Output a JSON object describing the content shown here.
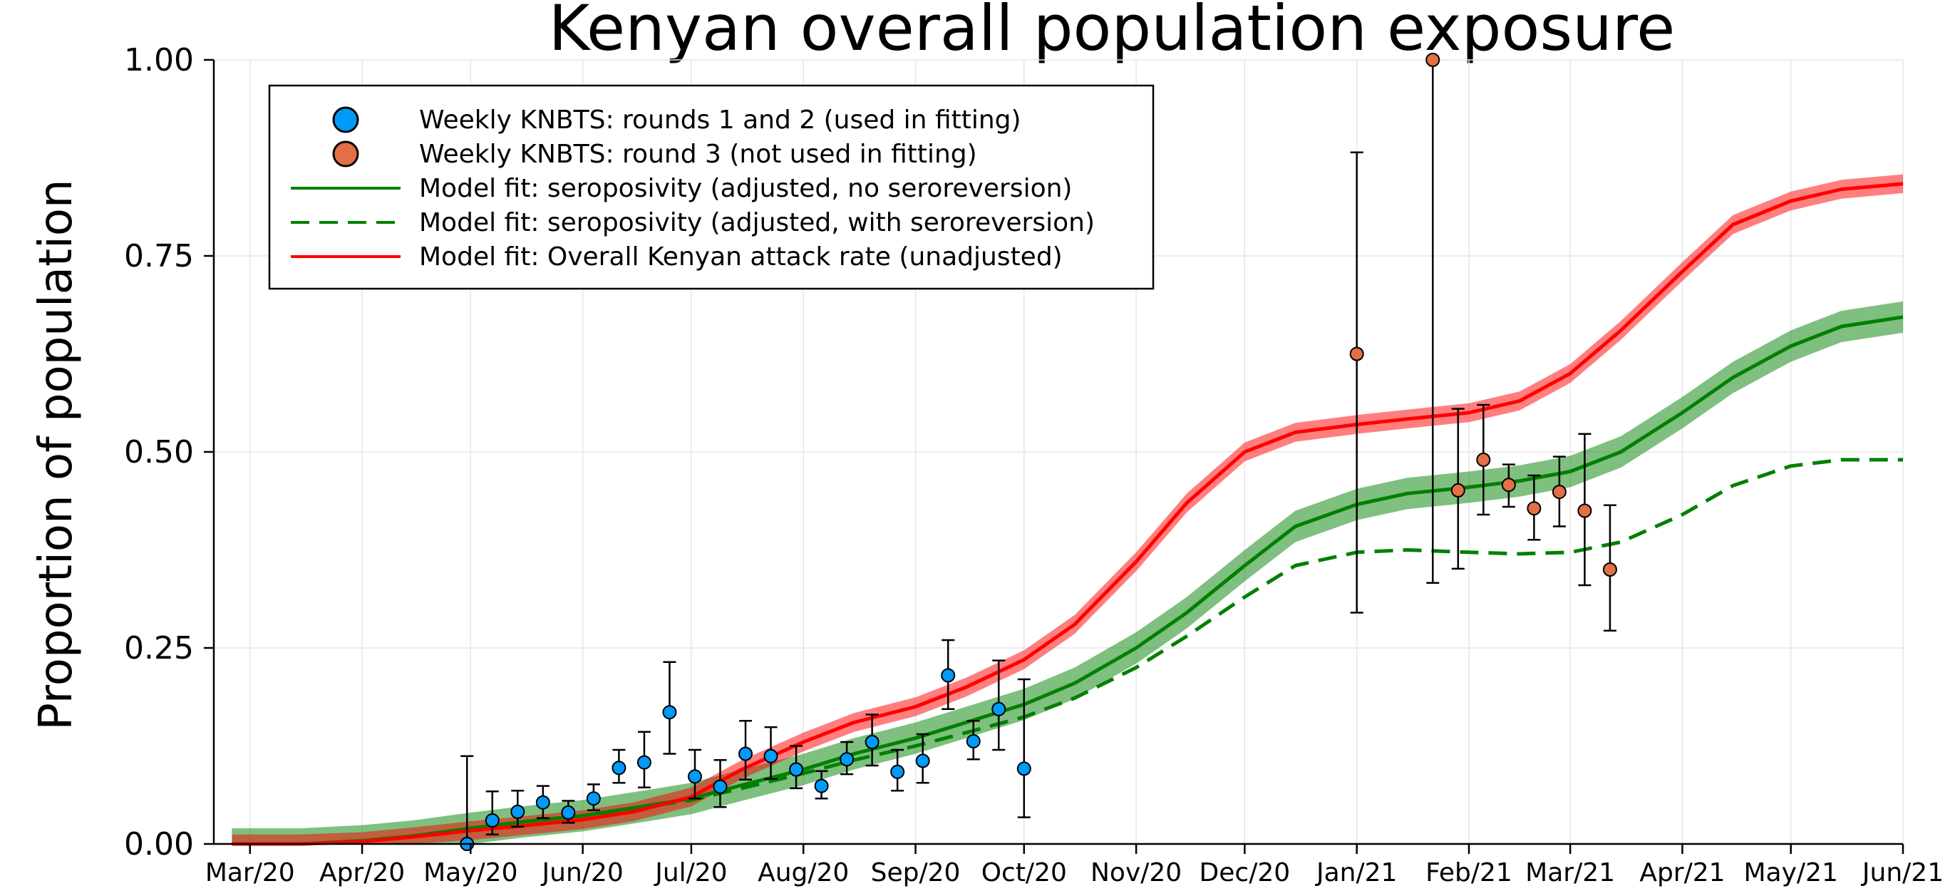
{
  "chart_data": {
    "type": "scatter",
    "title": "Kenyan overall population exposure",
    "xlabel": "",
    "ylabel": "Proportion of population",
    "xlim": [
      "2020-02-20",
      "2021-06-01"
    ],
    "ylim": [
      0,
      1
    ],
    "x_ticks": [
      "Mar/20",
      "Apr/20",
      "May/20",
      "Jun/20",
      "Jul/20",
      "Aug/20",
      "Sep/20",
      "Oct/20",
      "Nov/20",
      "Dec/20",
      "Jan/21",
      "Feb/21",
      "Mar/21",
      "Apr/21",
      "May/21",
      "Jun/21"
    ],
    "x_tick_dates": [
      "2020-03-01",
      "2020-04-01",
      "2020-05-01",
      "2020-06-01",
      "2020-07-01",
      "2020-08-01",
      "2020-09-01",
      "2020-10-01",
      "2020-11-01",
      "2020-12-01",
      "2021-01-01",
      "2021-02-01",
      "2021-03-01",
      "2021-04-01",
      "2021-05-01",
      "2021-06-01"
    ],
    "y_ticks": [
      "0.00",
      "0.25",
      "0.50",
      "0.75",
      "1.00"
    ],
    "y_tick_values": [
      0,
      0.25,
      0.5,
      0.75,
      1.0
    ],
    "grid": true,
    "legend_position": "top-left",
    "series": [
      {
        "name": "Weekly KNBTS: rounds 1 and 2 (used in fitting)",
        "kind": "points",
        "color": "#009af9",
        "points": [
          {
            "x": "2020-04-30",
            "y": 0.0,
            "lo": 0.0,
            "hi": 0.112
          },
          {
            "x": "2020-05-07",
            "y": 0.03,
            "lo": 0.012,
            "hi": 0.067
          },
          {
            "x": "2020-05-14",
            "y": 0.041,
            "lo": 0.022,
            "hi": 0.068
          },
          {
            "x": "2020-05-21",
            "y": 0.053,
            "lo": 0.033,
            "hi": 0.074
          },
          {
            "x": "2020-05-28",
            "y": 0.04,
            "lo": 0.027,
            "hi": 0.055
          },
          {
            "x": "2020-06-04",
            "y": 0.058,
            "lo": 0.043,
            "hi": 0.076
          },
          {
            "x": "2020-06-11",
            "y": 0.097,
            "lo": 0.078,
            "hi": 0.12
          },
          {
            "x": "2020-06-18",
            "y": 0.104,
            "lo": 0.072,
            "hi": 0.143
          },
          {
            "x": "2020-06-25",
            "y": 0.168,
            "lo": 0.115,
            "hi": 0.232
          },
          {
            "x": "2020-07-02",
            "y": 0.086,
            "lo": 0.058,
            "hi": 0.12
          },
          {
            "x": "2020-07-09",
            "y": 0.073,
            "lo": 0.047,
            "hi": 0.107
          },
          {
            "x": "2020-07-16",
            "y": 0.115,
            "lo": 0.082,
            "hi": 0.157
          },
          {
            "x": "2020-07-23",
            "y": 0.112,
            "lo": 0.083,
            "hi": 0.149
          },
          {
            "x": "2020-07-30",
            "y": 0.095,
            "lo": 0.071,
            "hi": 0.125
          },
          {
            "x": "2020-08-06",
            "y": 0.074,
            "lo": 0.058,
            "hi": 0.093
          },
          {
            "x": "2020-08-13",
            "y": 0.108,
            "lo": 0.089,
            "hi": 0.13
          },
          {
            "x": "2020-08-20",
            "y": 0.13,
            "lo": 0.1,
            "hi": 0.165
          },
          {
            "x": "2020-08-27",
            "y": 0.092,
            "lo": 0.068,
            "hi": 0.12
          },
          {
            "x": "2020-09-03",
            "y": 0.106,
            "lo": 0.078,
            "hi": 0.14
          },
          {
            "x": "2020-09-10",
            "y": 0.215,
            "lo": 0.172,
            "hi": 0.26
          },
          {
            "x": "2020-09-17",
            "y": 0.131,
            "lo": 0.108,
            "hi": 0.157
          },
          {
            "x": "2020-09-24",
            "y": 0.172,
            "lo": 0.12,
            "hi": 0.234
          },
          {
            "x": "2020-10-01",
            "y": 0.096,
            "lo": 0.034,
            "hi": 0.21
          }
        ]
      },
      {
        "name": "Weekly KNBTS: round 3 (not used in fitting)",
        "kind": "points",
        "color": "#e26f46",
        "points": [
          {
            "x": "2021-01-01",
            "y": 0.625,
            "lo": 0.295,
            "hi": 0.882
          },
          {
            "x": "2021-01-22",
            "y": 1.0,
            "lo": 0.333,
            "hi": 1.0
          },
          {
            "x": "2021-01-29",
            "y": 0.451,
            "lo": 0.351,
            "hi": 0.555
          },
          {
            "x": "2021-02-05",
            "y": 0.49,
            "lo": 0.42,
            "hi": 0.56
          },
          {
            "x": "2021-02-12",
            "y": 0.458,
            "lo": 0.43,
            "hi": 0.484
          },
          {
            "x": "2021-02-19",
            "y": 0.428,
            "lo": 0.388,
            "hi": 0.47
          },
          {
            "x": "2021-02-26",
            "y": 0.449,
            "lo": 0.405,
            "hi": 0.494
          },
          {
            "x": "2021-03-05",
            "y": 0.425,
            "lo": 0.33,
            "hi": 0.523
          },
          {
            "x": "2021-03-12",
            "y": 0.35,
            "lo": 0.272,
            "hi": 0.432
          }
        ]
      },
      {
        "name": "Model fit: seroposivity (adjusted, no seroreversion)",
        "kind": "line",
        "style": "solid",
        "color": "#008000",
        "band": 0.02,
        "x": [
          "2020-02-25",
          "2020-03-15",
          "2020-04-01",
          "2020-04-15",
          "2020-05-01",
          "2020-05-15",
          "2020-06-01",
          "2020-06-15",
          "2020-07-01",
          "2020-07-15",
          "2020-08-01",
          "2020-08-15",
          "2020-09-01",
          "2020-09-15",
          "2020-10-01",
          "2020-10-15",
          "2020-11-01",
          "2020-11-15",
          "2020-12-01",
          "2020-12-15",
          "2021-01-01",
          "2021-01-15",
          "2021-02-01",
          "2021-02-15",
          "2021-03-01",
          "2021-03-15",
          "2021-04-01",
          "2021-04-15",
          "2021-05-01",
          "2021-05-15",
          "2021-06-01"
        ],
        "y": [
          0.0,
          0.0,
          0.004,
          0.01,
          0.02,
          0.028,
          0.036,
          0.046,
          0.058,
          0.075,
          0.095,
          0.115,
          0.135,
          0.155,
          0.178,
          0.205,
          0.25,
          0.295,
          0.355,
          0.405,
          0.433,
          0.447,
          0.455,
          0.463,
          0.475,
          0.5,
          0.55,
          0.595,
          0.635,
          0.66,
          0.672
        ]
      },
      {
        "name": "Model fit: seroposivity (adjusted, with seroreversion)",
        "kind": "line",
        "style": "dashed",
        "color": "#008000",
        "x": [
          "2020-02-25",
          "2020-03-15",
          "2020-04-01",
          "2020-04-15",
          "2020-05-01",
          "2020-05-15",
          "2020-06-01",
          "2020-06-15",
          "2020-07-01",
          "2020-07-15",
          "2020-08-01",
          "2020-08-15",
          "2020-09-01",
          "2020-09-15",
          "2020-10-01",
          "2020-10-15",
          "2020-11-01",
          "2020-11-15",
          "2020-12-01",
          "2020-12-15",
          "2021-01-01",
          "2021-01-15",
          "2021-02-01",
          "2021-02-15",
          "2021-03-01",
          "2021-03-15",
          "2021-04-01",
          "2021-04-15",
          "2021-05-01",
          "2021-05-15",
          "2021-06-01"
        ],
        "y": [
          0.0,
          0.0,
          0.004,
          0.01,
          0.02,
          0.028,
          0.036,
          0.045,
          0.056,
          0.071,
          0.09,
          0.107,
          0.125,
          0.142,
          0.162,
          0.186,
          0.225,
          0.265,
          0.315,
          0.355,
          0.372,
          0.375,
          0.372,
          0.37,
          0.372,
          0.385,
          0.42,
          0.457,
          0.482,
          0.49,
          0.49
        ]
      },
      {
        "name": "Model fit: Overall Kenyan attack rate (unadjusted)",
        "kind": "line",
        "style": "solid",
        "color": "#ff0000",
        "band": 0.012,
        "x": [
          "2020-02-25",
          "2020-03-15",
          "2020-04-01",
          "2020-04-15",
          "2020-05-01",
          "2020-05-15",
          "2020-06-01",
          "2020-06-15",
          "2020-07-01",
          "2020-07-15",
          "2020-08-01",
          "2020-08-15",
          "2020-09-01",
          "2020-09-15",
          "2020-10-01",
          "2020-10-15",
          "2020-11-01",
          "2020-11-15",
          "2020-12-01",
          "2020-12-15",
          "2021-01-01",
          "2021-01-15",
          "2021-02-01",
          "2021-02-15",
          "2021-03-01",
          "2021-03-15",
          "2021-04-01",
          "2021-04-15",
          "2021-05-01",
          "2021-05-15",
          "2021-06-01"
        ],
        "y": [
          0.0,
          0.0,
          0.003,
          0.009,
          0.017,
          0.023,
          0.031,
          0.041,
          0.06,
          0.095,
          0.13,
          0.155,
          0.175,
          0.2,
          0.235,
          0.28,
          0.36,
          0.435,
          0.5,
          0.525,
          0.535,
          0.542,
          0.55,
          0.565,
          0.6,
          0.655,
          0.73,
          0.79,
          0.82,
          0.835,
          0.842
        ]
      }
    ]
  }
}
